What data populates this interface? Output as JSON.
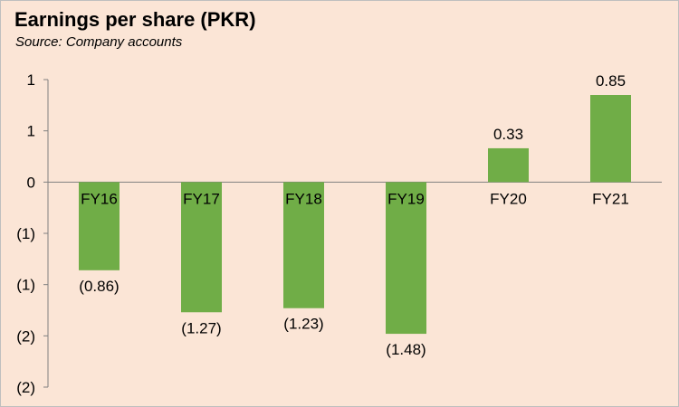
{
  "header": {
    "title": "Earnings per share (PKR)",
    "subtitle": "Source: Company accounts"
  },
  "chart_data": {
    "type": "bar",
    "title": "Earnings per share (PKR)",
    "subtitle": "Source: Company accounts",
    "categories": [
      "FY16",
      "FY17",
      "FY18",
      "FY19",
      "FY20",
      "FY21"
    ],
    "values": [
      -0.86,
      -1.27,
      -1.23,
      -1.48,
      0.33,
      0.85
    ],
    "data_labels": [
      "(0.86)",
      "(1.27)",
      "(1.23)",
      "(1.48)",
      "0.33",
      "0.85"
    ],
    "y_tick_labels": [
      "1",
      "1",
      "0",
      "(1)",
      "(1)",
      "(2)",
      "(2)"
    ],
    "ylim": [
      -2.0,
      1.0
    ],
    "xlabel": "",
    "ylabel": "",
    "bar_color": "#70ad47",
    "grid": false,
    "legend": "none"
  }
}
